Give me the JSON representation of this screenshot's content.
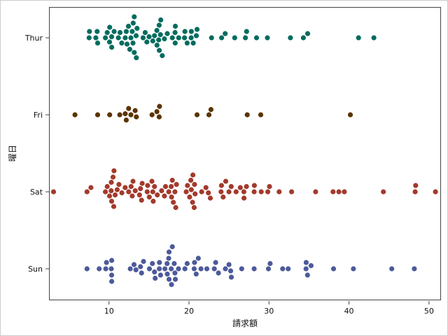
{
  "chart_data": {
    "type": "scatter",
    "subtype": "swarm",
    "xlabel": "請求額",
    "ylabel": "曜日",
    "xlim": [
      2.5,
      51.5
    ],
    "xticks": [
      10,
      20,
      30,
      40,
      50
    ],
    "grid": false,
    "categories": [
      "Thur",
      "Fri",
      "Sat",
      "Sun"
    ],
    "series": [
      {
        "category": "Thur",
        "color": "#016c5e",
        "values": [
          7.51,
          7.56,
          8.35,
          8.52,
          8.58,
          9.55,
          9.78,
          10.07,
          10.09,
          10.33,
          10.34,
          10.65,
          11.17,
          11.38,
          11.59,
          12.03,
          12.16,
          12.26,
          12.43,
          12.6,
          12.74,
          12.9,
          13.0,
          13.03,
          13.16,
          13.16,
          13.39,
          13.42,
          13.51,
          14.26,
          14.52,
          14.73,
          15.01,
          15.48,
          15.69,
          15.98,
          16.0,
          16.21,
          16.27,
          16.29,
          16.43,
          16.47,
          16.66,
          16.93,
          17.29,
          17.92,
          18.26,
          18.28,
          18.29,
          18.71,
          19.44,
          19.49,
          19.77,
          20.27,
          20.29,
          20.53,
          20.92,
          21.01,
          22.82,
          24.08,
          24.52,
          25.71,
          27.05,
          27.2,
          28.44,
          29.8,
          32.68,
          34.3,
          34.83,
          41.19,
          43.11
        ]
      },
      {
        "category": "Fri",
        "color": "#5a3400",
        "values": [
          5.75,
          8.58,
          10.09,
          11.35,
          12.03,
          12.16,
          12.46,
          12.74,
          13.27,
          13.42,
          15.38,
          15.98,
          16.27,
          16.32,
          21.01,
          22.49,
          22.75,
          27.28,
          28.97,
          40.17
        ]
      },
      {
        "category": "Sat",
        "color": "#a33a2c",
        "values": [
          3.07,
          7.25,
          7.74,
          9.55,
          9.78,
          10.07,
          10.27,
          10.29,
          10.33,
          10.51,
          10.59,
          10.63,
          10.77,
          11.02,
          11.24,
          11.61,
          12.02,
          12.46,
          12.76,
          12.9,
          13.0,
          13.28,
          13.81,
          13.94,
          14.07,
          14.15,
          14.78,
          14.83,
          15.04,
          15.36,
          15.48,
          15.53,
          15.69,
          16.04,
          16.58,
          16.93,
          17.07,
          17.47,
          17.78,
          17.82,
          17.92,
          18.04,
          18.24,
          18.35,
          18.43,
          19.65,
          19.81,
          20.08,
          20.23,
          20.29,
          20.45,
          20.49,
          20.65,
          20.69,
          20.76,
          21.58,
          22.12,
          22.42,
          22.67,
          24.01,
          24.06,
          24.27,
          24.59,
          25.0,
          25.28,
          25.89,
          26.41,
          26.86,
          26.88,
          27.18,
          28.15,
          28.17,
          29.03,
          29.85,
          30.06,
          31.27,
          32.83,
          35.83,
          38.01,
          38.73,
          39.42,
          44.3,
          48.27,
          48.33,
          50.81
        ]
      },
      {
        "category": "Sun",
        "color": "#4c5a9a",
        "values": [
          7.25,
          8.77,
          9.6,
          9.68,
          10.29,
          10.33,
          10.34,
          10.34,
          12.66,
          13.13,
          13.37,
          13.94,
          14.07,
          14.31,
          15.06,
          15.42,
          15.69,
          15.77,
          16.29,
          16.31,
          16.45,
          16.99,
          17.26,
          17.29,
          17.46,
          17.51,
          17.51,
          17.78,
          17.81,
          17.92,
          18.15,
          18.24,
          18.29,
          18.69,
          19.49,
          19.77,
          20.65,
          20.69,
          20.9,
          21.16,
          21.5,
          22.23,
          23.17,
          23.33,
          23.68,
          24.55,
          25.0,
          25.21,
          25.29,
          26.59,
          28.15,
          29.93,
          30.14,
          31.71,
          32.4,
          34.63,
          34.65,
          34.81,
          35.26,
          38.07,
          40.55,
          45.35,
          48.17
        ]
      }
    ]
  }
}
